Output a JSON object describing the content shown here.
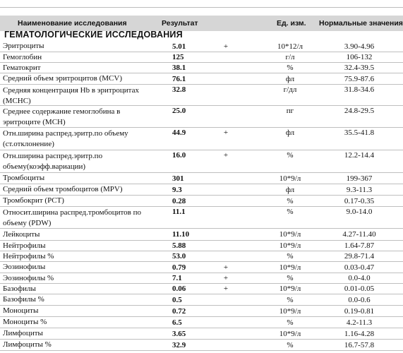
{
  "header": {
    "name": "Наименование исследования",
    "result": "Результат",
    "unit": "Ед. изм.",
    "norm": "Нормальные значения"
  },
  "section_title": "ГЕМАТОЛОГИЧЕСКИЕ ИССЛЕДОВАНИЯ",
  "rows": [
    {
      "name": "Эритроциты",
      "result": "5.01",
      "flag": "+",
      "unit": "10*12/л",
      "norm": "3.90-4.96"
    },
    {
      "name": "Гемоглобин",
      "result": "125",
      "flag": "",
      "unit": "г/л",
      "norm": "106-132"
    },
    {
      "name": "Гематокрит",
      "result": "38.1",
      "flag": "",
      "unit": "%",
      "norm": "32.4-39.5"
    },
    {
      "name": "Средний объем эритроцитов (MCV)",
      "result": "76.1",
      "flag": "",
      "unit": "фл",
      "norm": "75.9-87.6"
    },
    {
      "name": "Средняя концентрация Hb в эритроцитах (MCHC)",
      "result": "32.8",
      "flag": "",
      "unit": "г/дл",
      "norm": "31.8-34.6"
    },
    {
      "name": "Среднее содержание гемоглобина в эритроците (MCH)",
      "result": "25.0",
      "flag": "",
      "unit": "пг",
      "norm": "24.8-29.5"
    },
    {
      "name": "Отн.ширина распред.эритр.по объему (ст.отклонение)",
      "result": "44.9",
      "flag": "+",
      "unit": "фл",
      "norm": "35.5-41.8"
    },
    {
      "name": "Отн.ширина распред.эритр.по объему(коэфф.вариации)",
      "result": "16.0",
      "flag": "+",
      "unit": "%",
      "norm": "12.2-14.4"
    },
    {
      "name": "Тромбоциты",
      "result": "301",
      "flag": "",
      "unit": "10*9/л",
      "norm": "199-367"
    },
    {
      "name": "Средний объем тромбоцитов (MPV)",
      "result": "9.3",
      "flag": "",
      "unit": "фл",
      "norm": "9.3-11.3"
    },
    {
      "name": "Тромбокрит (PCT)",
      "result": "0.28",
      "flag": "",
      "unit": "%",
      "norm": "0.17-0.35"
    },
    {
      "name": "Относит.ширина распред.тромбоцитов по объему (PDW)",
      "result": "11.1",
      "flag": "",
      "unit": "%",
      "norm": "9.0-14.0"
    },
    {
      "name": "Лейкоциты",
      "result": "11.10",
      "flag": "",
      "unit": "10*9/л",
      "norm": "4.27-11.40"
    },
    {
      "name": "Нейтрофилы",
      "result": "5.88",
      "flag": "",
      "unit": "10*9/л",
      "norm": "1.64-7.87"
    },
    {
      "name": "Нейтрофилы %",
      "result": "53.0",
      "flag": "",
      "unit": "%",
      "norm": "29.8-71.4"
    },
    {
      "name": "Эозинофилы",
      "result": "0.79",
      "flag": "+",
      "unit": "10*9/л",
      "norm": "0.03-0.47"
    },
    {
      "name": "Эозинофилы %",
      "result": "7.1",
      "flag": "+",
      "unit": "%",
      "norm": "0.0-4.0"
    },
    {
      "name": "Базофилы",
      "result": "0.06",
      "flag": "+",
      "unit": "10*9/л",
      "norm": "0.01-0.05"
    },
    {
      "name": "Базофилы %",
      "result": "0.5",
      "flag": "",
      "unit": "%",
      "norm": "0.0-0.6"
    },
    {
      "name": "Моноциты",
      "result": "0.72",
      "flag": "",
      "unit": "10*9/л",
      "norm": "0.19-0.81"
    },
    {
      "name": "Моноциты %",
      "result": "6.5",
      "flag": "",
      "unit": "%",
      "norm": "4.2-11.3"
    },
    {
      "name": "Лимфоциты",
      "result": "3.65",
      "flag": "",
      "unit": "10*9/л",
      "norm": "1.16-4.28"
    },
    {
      "name": "Лимфоциты %",
      "result": "32.9",
      "flag": "",
      "unit": "%",
      "norm": "16.7-57.8"
    }
  ]
}
